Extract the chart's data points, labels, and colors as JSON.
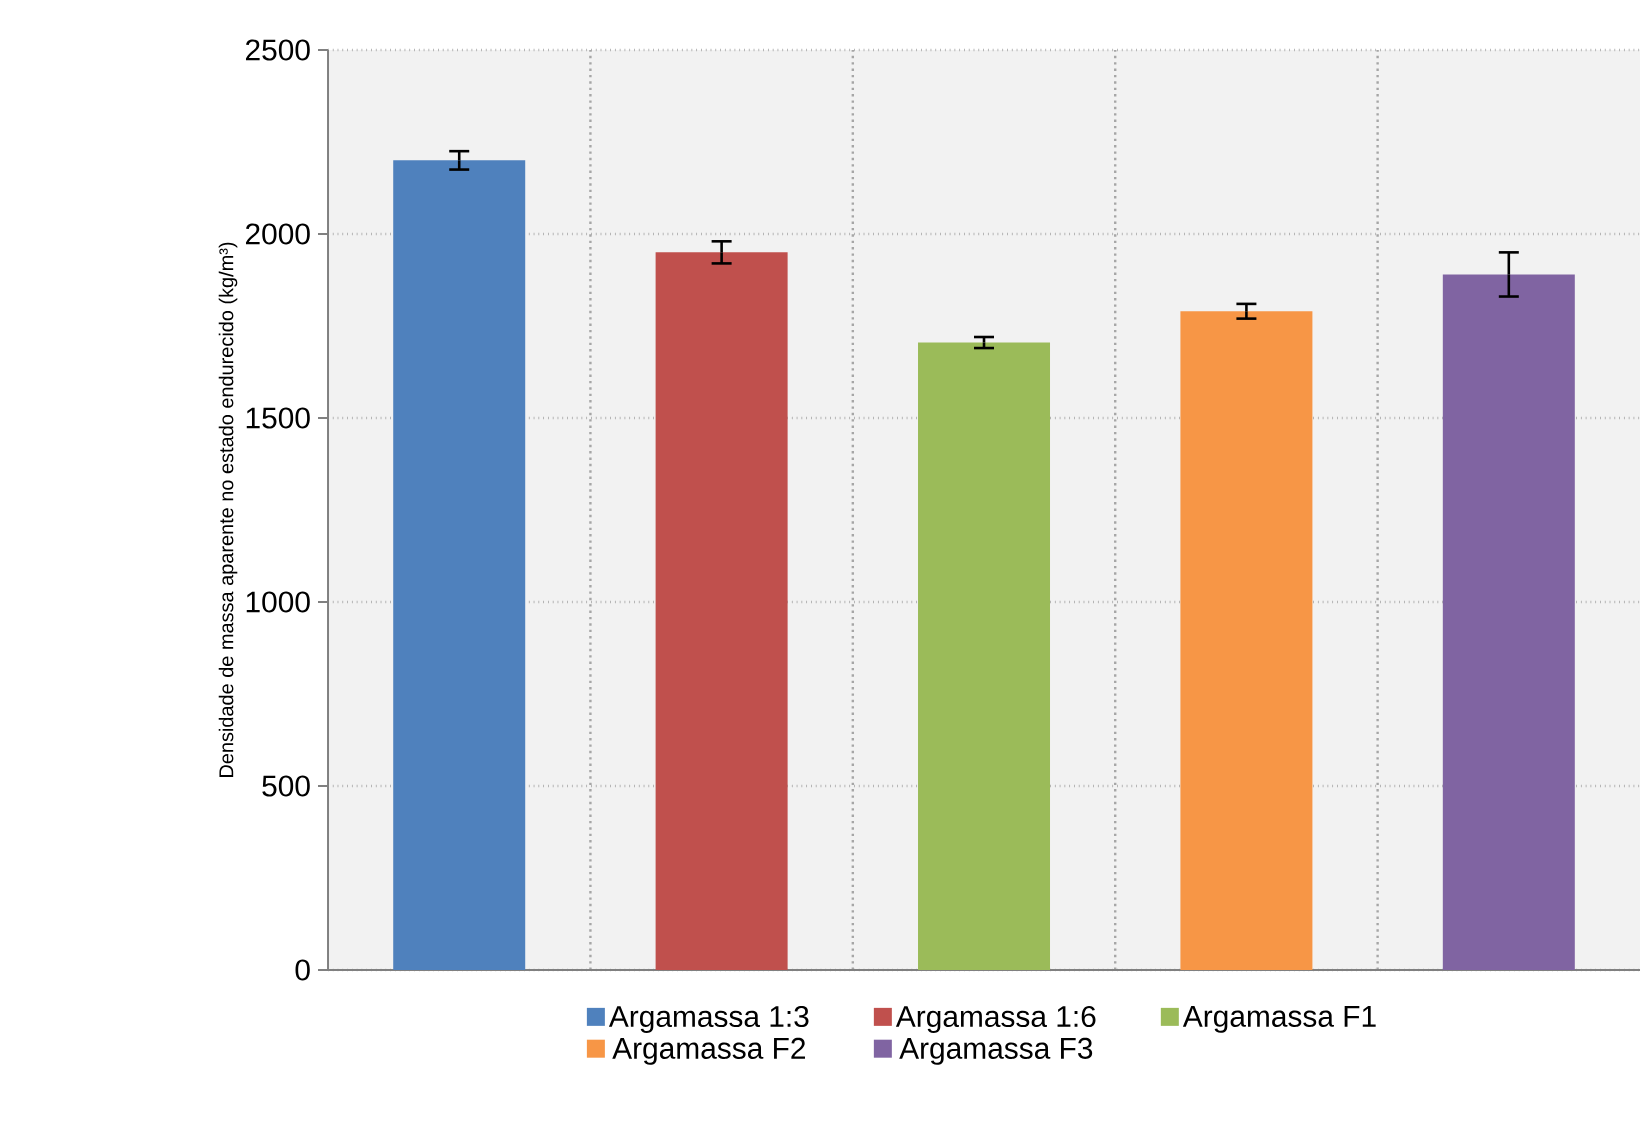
{
  "chart_data": {
    "type": "bar",
    "ylabel": "Densidade de massa aparente no estado endurecido (kg/m³)",
    "categories": [
      null,
      null,
      null,
      null,
      null
    ],
    "series": [
      {
        "name": "Argamassa 1:3",
        "color": "#4f81bd",
        "values": [
          2200,
          null,
          null,
          null,
          null
        ],
        "errors": [
          25,
          null,
          null,
          null,
          null
        ]
      },
      {
        "name": "Argamassa  1:6",
        "color": "#c0504d",
        "values": [
          null,
          1950,
          null,
          null,
          null
        ],
        "errors": [
          null,
          30,
          null,
          null,
          null
        ]
      },
      {
        "name": "Argamassa  F1",
        "color": "#9bbb59",
        "values": [
          null,
          null,
          1705,
          null,
          null
        ],
        "errors": [
          null,
          null,
          15,
          null,
          null
        ]
      },
      {
        "name": "Argamassa  F2",
        "color": "#f79646",
        "values": [
          null,
          null,
          null,
          1790,
          null
        ],
        "errors": [
          null,
          null,
          null,
          20,
          null
        ]
      },
      {
        "name": "Argamassa  F3",
        "color": "#8064a2",
        "values": [
          null,
          null,
          null,
          null,
          1890
        ],
        "errors": [
          null,
          null,
          null,
          null,
          60
        ]
      }
    ],
    "ylim": [
      0,
      2500
    ],
    "yticks": [
      0,
      500,
      1000,
      1500,
      2000,
      2500
    ],
    "grid": true,
    "legend": "bottom"
  }
}
